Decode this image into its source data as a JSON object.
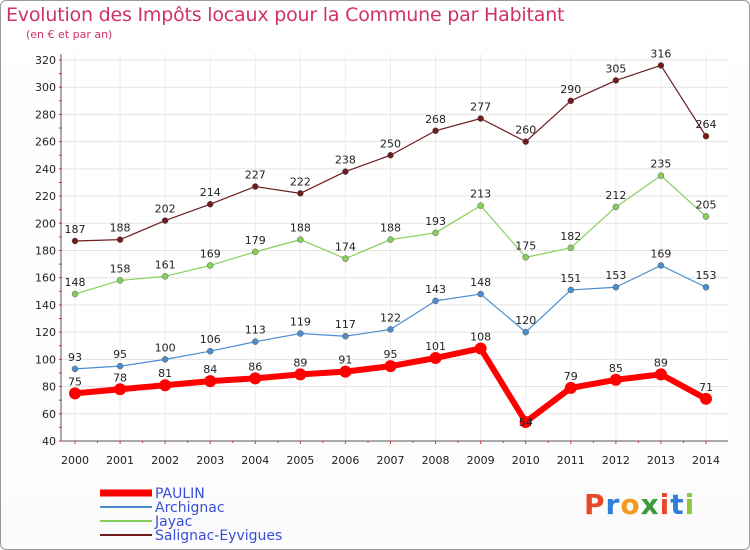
{
  "title": "Evolution des Impôts locaux pour la Commune par Habitant",
  "subtitle": "(en € et par an)",
  "logo": {
    "letters": [
      "P",
      "r",
      "o",
      "x",
      "i",
      "t",
      "i"
    ],
    "colors": [
      "#e8482a",
      "#2f7fd6",
      "#f39a1f",
      "#3d9a3a",
      "#e8482a",
      "#2f7fd6",
      "#8cc63f"
    ]
  },
  "chart_data": {
    "type": "line",
    "title": "Evolution des Impôts locaux pour la Commune par Habitant",
    "subtitle": "(en € et par an)",
    "categories": [
      "2000",
      "2001",
      "2002",
      "2003",
      "2004",
      "2005",
      "2006",
      "2007",
      "2008",
      "2009",
      "2010",
      "2011",
      "2012",
      "2013",
      "2014"
    ],
    "ylim": [
      40,
      320
    ],
    "yticks": [
      40,
      60,
      80,
      100,
      120,
      140,
      160,
      180,
      200,
      220,
      240,
      260,
      280,
      300,
      320
    ],
    "grid": true,
    "legend_position": "bottom-left",
    "series": [
      {
        "name": "PAULIN",
        "color": "#ff0000",
        "values": [
          75,
          78,
          81,
          84,
          86,
          89,
          91,
          95,
          101,
          108,
          54,
          79,
          85,
          89,
          71
        ]
      },
      {
        "name": "Archignac",
        "color": "#4a8ed0",
        "values": [
          93,
          95,
          100,
          106,
          113,
          119,
          117,
          122,
          143,
          148,
          120,
          151,
          153,
          169,
          153
        ]
      },
      {
        "name": "Jayac",
        "color": "#86d05a",
        "values": [
          148,
          158,
          161,
          169,
          179,
          188,
          174,
          188,
          193,
          213,
          175,
          182,
          212,
          235,
          205
        ]
      },
      {
        "name": "Salignac-Eyvigues",
        "color": "#6e1c1c",
        "values": [
          187,
          188,
          202,
          214,
          227,
          222,
          238,
          250,
          268,
          277,
          260,
          290,
          305,
          316,
          264
        ]
      }
    ]
  }
}
